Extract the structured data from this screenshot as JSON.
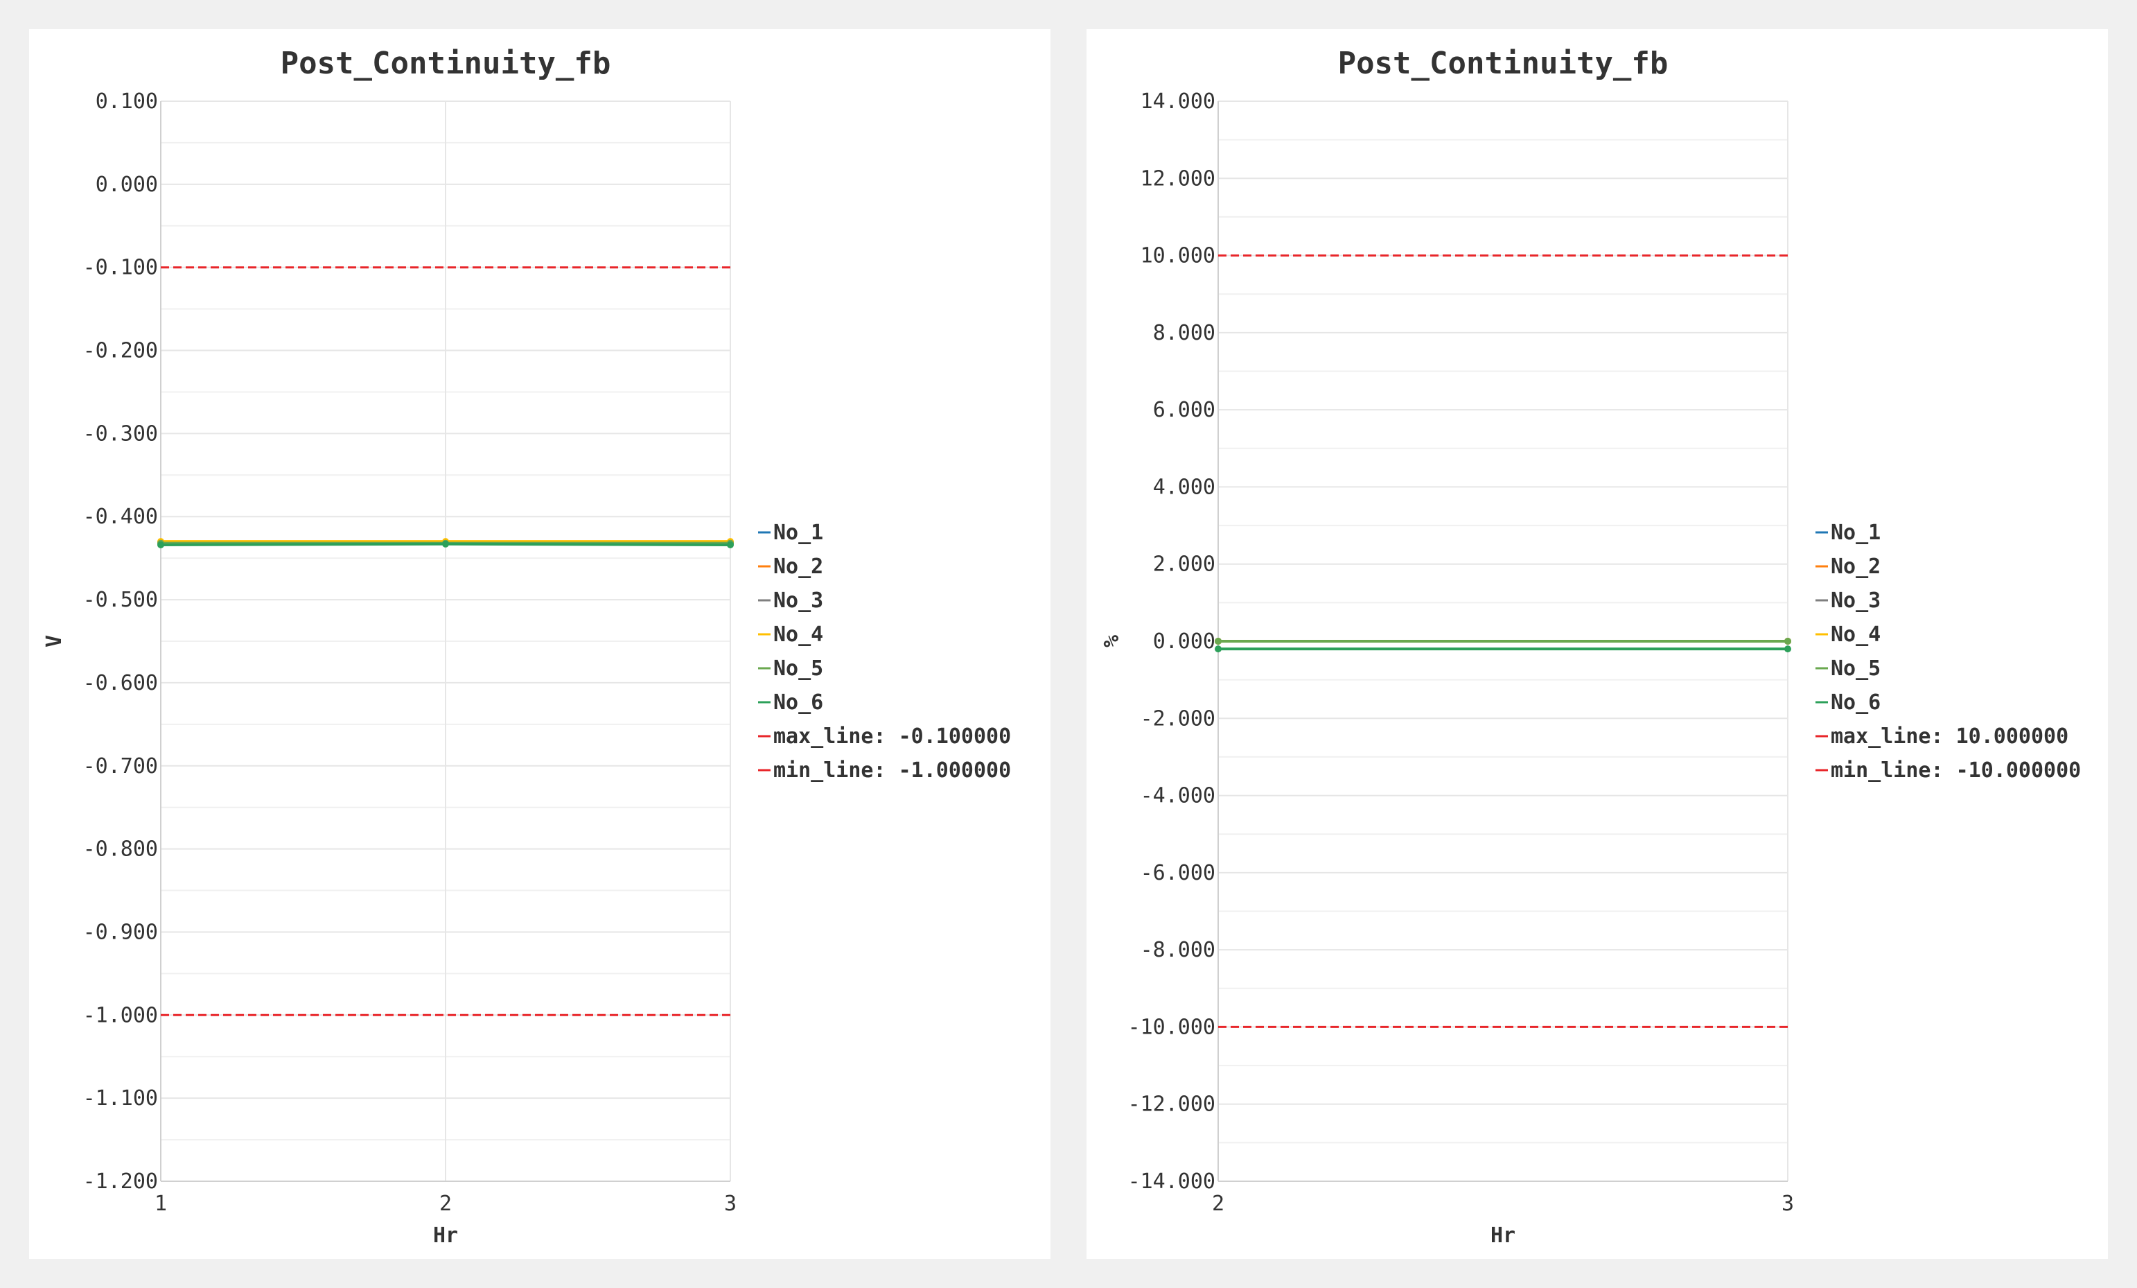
{
  "chart_data": [
    {
      "type": "line",
      "title": "Post_Continuity_fb",
      "xlabel": "Hr",
      "ylabel": "V",
      "x": [
        1,
        2,
        3
      ],
      "xlim": [
        1,
        3
      ],
      "ylim": [
        -1.2,
        0.1
      ],
      "y_major_step": 0.1,
      "x_ticks": [
        "1",
        "2",
        "3"
      ],
      "y_ticks": [
        "0.100",
        "0.000",
        "-0.100",
        "-0.200",
        "-0.300",
        "-0.400",
        "-0.500",
        "-0.600",
        "-0.700",
        "-0.800",
        "-0.900",
        "-1.000",
        "-1.100",
        "-1.200"
      ],
      "grid": true,
      "legend_position": "right",
      "series": [
        {
          "name": "No_1",
          "color": "#1f77b4",
          "values": [
            -0.432,
            -0.432,
            -0.432
          ]
        },
        {
          "name": "No_2",
          "color": "#ff7f0e",
          "values": [
            -0.431,
            -0.431,
            -0.431
          ]
        },
        {
          "name": "No_3",
          "color": "#7f7f7f",
          "values": [
            -0.432,
            -0.432,
            -0.432
          ]
        },
        {
          "name": "No_4",
          "color": "#ffbf00",
          "values": [
            -0.43,
            -0.43,
            -0.43
          ]
        },
        {
          "name": "No_5",
          "color": "#6aa84f",
          "values": [
            -0.432,
            -0.432,
            -0.432
          ]
        },
        {
          "name": "No_6",
          "color": "#2ca05a",
          "values": [
            -0.434,
            -0.433,
            -0.434
          ]
        }
      ],
      "reference_lines": [
        {
          "name": "max_line: -0.100000",
          "value": -0.1,
          "color": "#e8262a"
        },
        {
          "name": "min_line: -1.000000",
          "value": -1.0,
          "color": "#e8262a"
        }
      ]
    },
    {
      "type": "line",
      "title": "Post_Continuity_fb",
      "xlabel": "Hr",
      "ylabel": "%",
      "x": [
        2,
        3
      ],
      "xlim": [
        2,
        3
      ],
      "ylim": [
        -14,
        14
      ],
      "y_major_step": 2,
      "x_ticks": [
        "2",
        "3"
      ],
      "y_ticks": [
        "14.000",
        "12.000",
        "10.000",
        "8.000",
        "6.000",
        "4.000",
        "2.000",
        "0.000",
        "-2.000",
        "-4.000",
        "-6.000",
        "-8.000",
        "-10.000",
        "-12.000",
        "-14.000"
      ],
      "grid": true,
      "legend_position": "right",
      "series": [
        {
          "name": "No_1",
          "color": "#1f77b4",
          "values": [
            0.0,
            0.0
          ]
        },
        {
          "name": "No_2",
          "color": "#ff7f0e",
          "values": [
            0.0,
            0.0
          ]
        },
        {
          "name": "No_3",
          "color": "#7f7f7f",
          "values": [
            0.0,
            0.0
          ]
        },
        {
          "name": "No_4",
          "color": "#ffbf00",
          "values": [
            0.0,
            0.0
          ]
        },
        {
          "name": "No_5",
          "color": "#6aa84f",
          "values": [
            0.0,
            0.0
          ]
        },
        {
          "name": "No_6",
          "color": "#2ca05a",
          "values": [
            -0.2,
            -0.2
          ]
        }
      ],
      "reference_lines": [
        {
          "name": "max_line: 10.000000",
          "value": 10.0,
          "color": "#e8262a"
        },
        {
          "name": "min_line: -10.000000",
          "value": -10.0,
          "color": "#e8262a"
        }
      ]
    }
  ]
}
